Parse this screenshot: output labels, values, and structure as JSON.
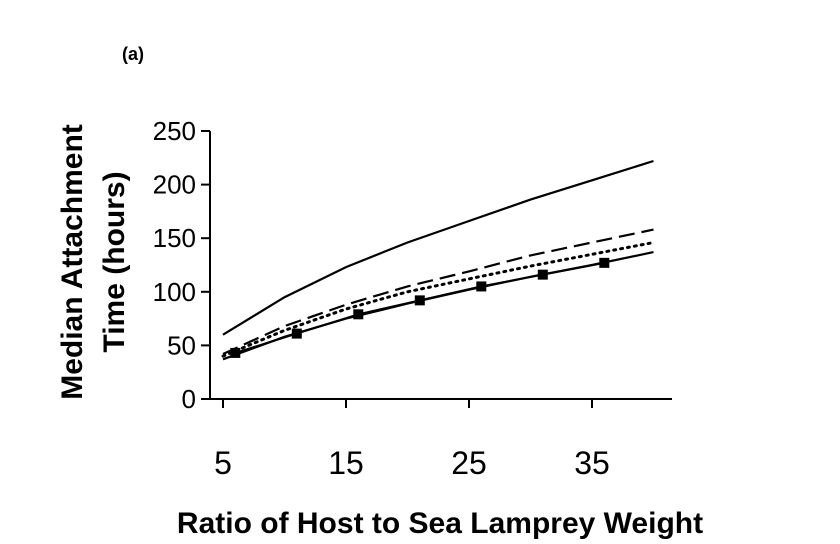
{
  "panel_label": "(a)",
  "chart_data": {
    "type": "line",
    "title": "",
    "xlabel": "Ratio of Host to Sea Lamprey Weight",
    "ylabel_lines": [
      "Median Attachment",
      "Time (hours)"
    ],
    "xlim": [
      5,
      40
    ],
    "ylim": [
      0,
      250
    ],
    "x_ticks": [
      5,
      15,
      25,
      35
    ],
    "y_ticks": [
      0,
      50,
      100,
      150,
      200,
      250
    ],
    "grid": false,
    "legend": "none",
    "series": [
      {
        "style": "solid",
        "x": [
          5,
          10,
          15,
          20,
          25,
          30,
          35,
          40
        ],
        "y": [
          60,
          95,
          123,
          146,
          166,
          186,
          204,
          222
        ]
      },
      {
        "style": "dashed",
        "x": [
          5,
          10,
          15,
          20,
          25,
          30,
          35,
          40
        ],
        "y": [
          42,
          68,
          88,
          105,
          119,
          134,
          146,
          158
        ]
      },
      {
        "style": "dotted",
        "x": [
          5,
          10,
          15,
          20,
          25,
          30,
          35,
          40
        ],
        "y": [
          40,
          64,
          84,
          100,
          112,
          124,
          135,
          146
        ]
      },
      {
        "style": "solid",
        "x": [
          5,
          10,
          15,
          20,
          25,
          30,
          35,
          40
        ],
        "y": [
          37,
          58,
          75,
          89,
          102,
          114,
          125,
          137
        ]
      },
      {
        "style": "markers",
        "marker": "square",
        "x": [
          6,
          11,
          16,
          21,
          26,
          31,
          36
        ],
        "y": [
          43,
          61,
          79,
          92,
          105,
          116,
          127
        ]
      }
    ]
  }
}
